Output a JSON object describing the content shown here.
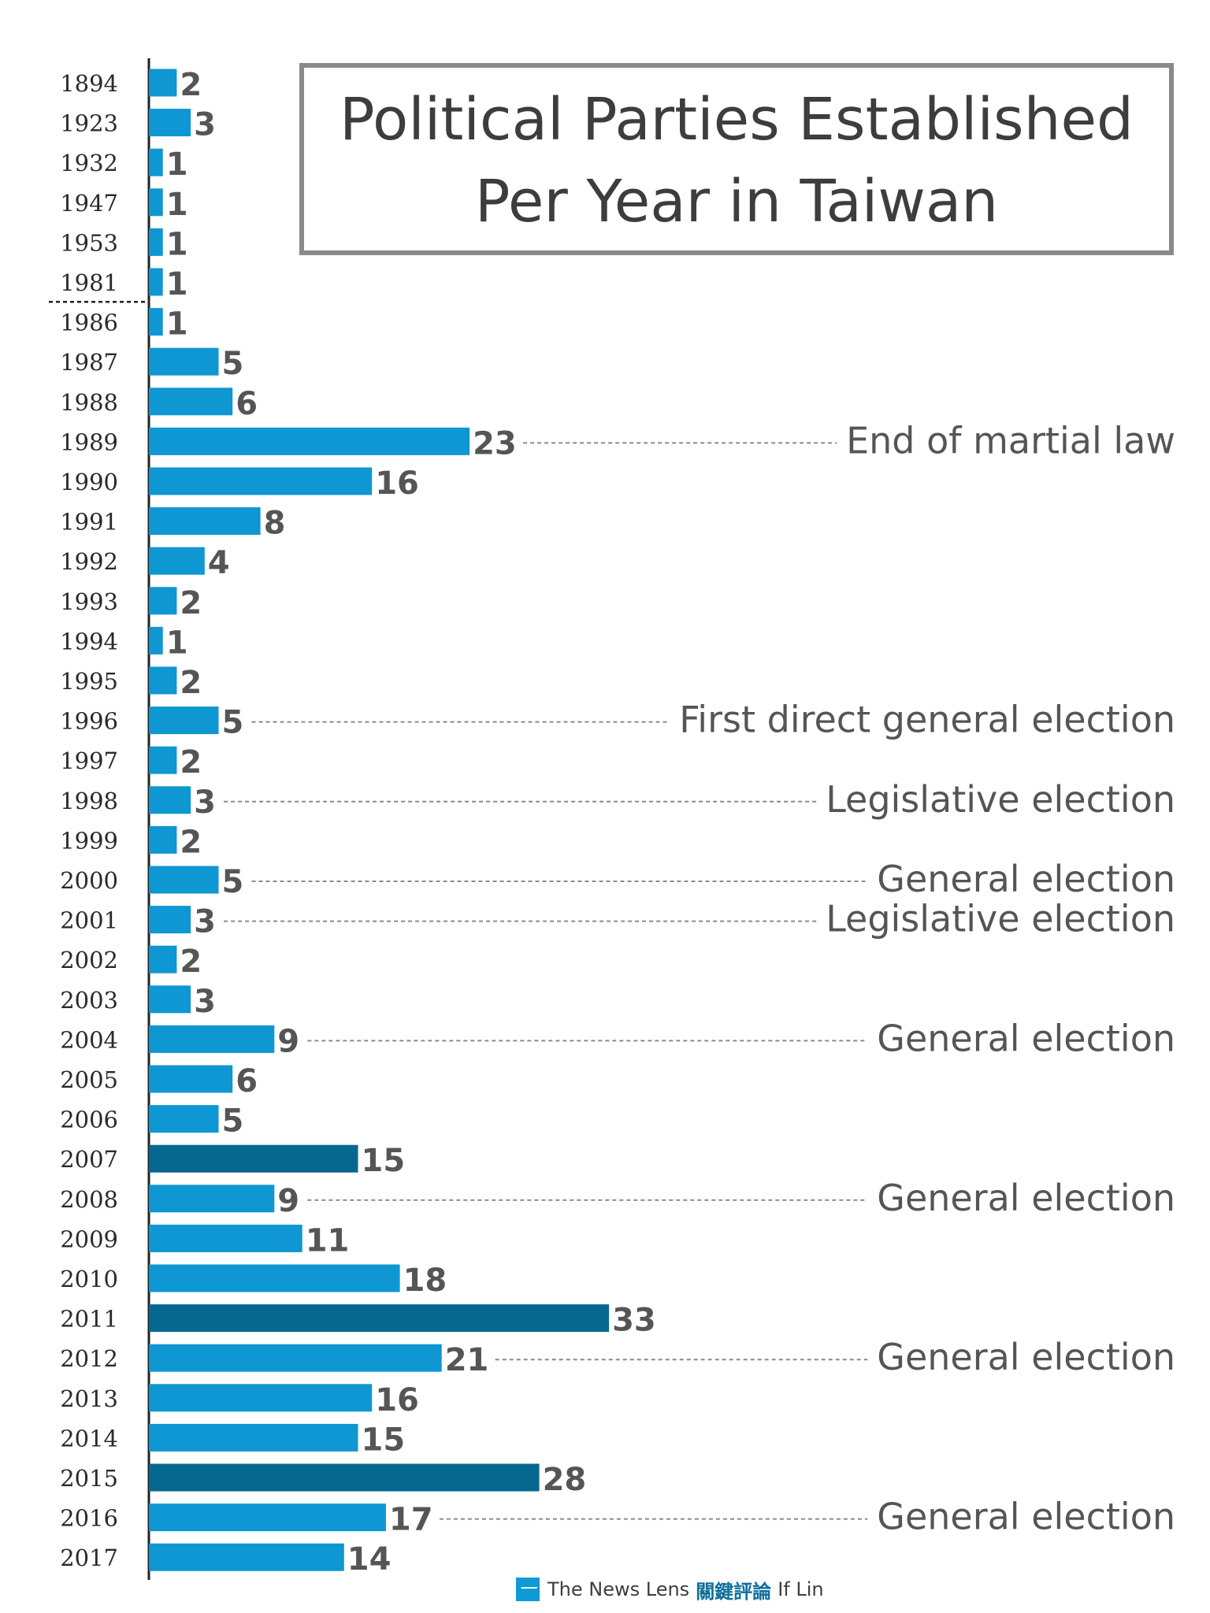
{
  "title": {
    "line1": "Political Parties Established",
    "line2": "Per Year in Taiwan"
  },
  "credit": {
    "brand": "The News Lens",
    "brand_cjk": "關鍵評論",
    "author": "If Lin"
  },
  "colors": {
    "bar": "#0e97d2",
    "bar_highlight": "#07688f",
    "text": "#2a2a2a",
    "value": "#555555",
    "note": "#555555",
    "leader": "#8a8a8a"
  },
  "chart_data": {
    "type": "bar",
    "orientation": "horizontal",
    "title": "Political Parties Established Per Year in Taiwan",
    "xlabel": "",
    "ylabel": "",
    "xlim": [
      0,
      33
    ],
    "categories": [
      "1894",
      "1923",
      "1932",
      "1947",
      "1953",
      "1981",
      "1986",
      "1987",
      "1988",
      "1989",
      "1990",
      "1991",
      "1992",
      "1993",
      "1994",
      "1995",
      "1996",
      "1997",
      "1998",
      "1999",
      "2000",
      "2001",
      "2002",
      "2003",
      "2004",
      "2005",
      "2006",
      "2007",
      "2008",
      "2009",
      "2010",
      "2011",
      "2012",
      "2013",
      "2014",
      "2015",
      "2016",
      "2017"
    ],
    "values": [
      2,
      3,
      1,
      1,
      1,
      1,
      1,
      5,
      6,
      23,
      16,
      8,
      4,
      2,
      1,
      2,
      5,
      2,
      3,
      2,
      5,
      3,
      2,
      3,
      9,
      6,
      5,
      15,
      9,
      11,
      18,
      33,
      21,
      16,
      15,
      28,
      17,
      14
    ],
    "highlighted": [
      "2007",
      "2011",
      "2015"
    ],
    "separator_after": "1981",
    "annotations": [
      {
        "year": "1989",
        "text": "End of martial law"
      },
      {
        "year": "1996",
        "text": "First direct general election"
      },
      {
        "year": "1998",
        "text": "Legislative election"
      },
      {
        "year": "2000",
        "text": "General election"
      },
      {
        "year": "2001",
        "text": "Legislative election"
      },
      {
        "year": "2004",
        "text": "General election"
      },
      {
        "year": "2008",
        "text": "General election"
      },
      {
        "year": "2012",
        "text": "General election"
      },
      {
        "year": "2016",
        "text": "General election"
      }
    ]
  }
}
